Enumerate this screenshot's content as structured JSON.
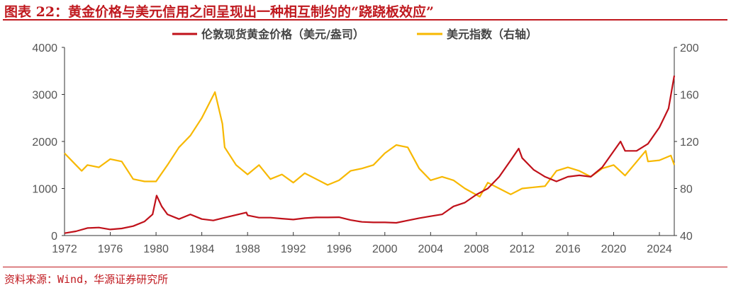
{
  "title": "图表 22：黄金价格与美元信用之间呈现出一种相互制约的“跷跷板效应”",
  "source": "资料来源：Wind，华源证券研究所",
  "colors": {
    "gold": "#c0111a",
    "dxy": "#f7b800",
    "accent": "#c0191f"
  },
  "chart_data": {
    "type": "line",
    "xlabel": "",
    "ylabel": "",
    "x_ticks": [
      "1972",
      "1976",
      "1980",
      "1984",
      "1988",
      "1992",
      "1996",
      "2000",
      "2004",
      "2008",
      "2012",
      "2016",
      "2020",
      "2024"
    ],
    "xlim": [
      1972,
      2025.3
    ],
    "y_left": {
      "lim": [
        0,
        4000
      ],
      "ticks": [
        "0",
        "1000",
        "2000",
        "3000",
        "4000"
      ]
    },
    "y_right": {
      "lim": [
        40,
        200
      ],
      "ticks": [
        "40",
        "80",
        "120",
        "160",
        "200"
      ]
    },
    "legend_position": "top",
    "series": [
      {
        "name": "伦敦现货黄金价格（美元/盎司）",
        "axis": "left",
        "x": [
          1972,
          1973,
          1974,
          1975,
          1976,
          1977,
          1978,
          1979,
          1979.7,
          1980.05,
          1980.5,
          1981,
          1982,
          1983,
          1984,
          1985,
          1986,
          1987.9,
          1988,
          1989,
          1990,
          1991,
          1992,
          1993,
          1994,
          1995,
          1996,
          1997,
          1998,
          1999,
          2000,
          2001,
          2002,
          2003,
          2004,
          2005,
          2006,
          2007,
          2008,
          2009,
          2010,
          2011,
          2011.7,
          2012,
          2013,
          2014,
          2015,
          2016,
          2017,
          2018,
          2019,
          2020.6,
          2021,
          2022,
          2023,
          2024,
          2024.8,
          2025.3
        ],
        "y": [
          50,
          90,
          160,
          170,
          130,
          150,
          200,
          300,
          450,
          850,
          620,
          450,
          350,
          450,
          350,
          320,
          380,
          490,
          430,
          380,
          380,
          360,
          340,
          370,
          385,
          385,
          390,
          330,
          290,
          280,
          280,
          270,
          320,
          370,
          410,
          450,
          620,
          700,
          870,
          1000,
          1250,
          1600,
          1850,
          1650,
          1400,
          1250,
          1150,
          1250,
          1280,
          1250,
          1450,
          2000,
          1800,
          1800,
          1950,
          2300,
          2700,
          3400
        ]
      },
      {
        "name": "美元指数（右轴）",
        "axis": "right",
        "x": [
          1972,
          1973,
          1973.5,
          1974,
          1975,
          1976,
          1977,
          1978,
          1979,
          1980,
          1981,
          1982,
          1983,
          1984,
          1985.15,
          1985.8,
          1986,
          1987,
          1988,
          1989,
          1990,
          1991,
          1992,
          1993,
          1994,
          1995,
          1996,
          1997,
          1998,
          1999,
          2000,
          2001,
          2002,
          2003,
          2004,
          2005,
          2006,
          2007,
          2008.3,
          2009,
          2010,
          2011,
          2012,
          2013,
          2014,
          2015,
          2016,
          2017,
          2018,
          2019,
          2020,
          2021,
          2022.8,
          2023,
          2024,
          2025,
          2025.3
        ],
        "y": [
          110,
          100,
          95,
          100,
          98,
          105,
          103,
          88,
          86,
          86,
          100,
          115,
          125,
          140,
          162,
          135,
          115,
          100,
          92,
          100,
          88,
          92,
          85,
          93,
          88,
          83,
          87,
          95,
          97,
          100,
          110,
          117,
          115,
          97,
          87,
          90,
          87,
          80,
          73,
          85,
          80,
          75,
          80,
          81,
          82,
          95,
          98,
          95,
          90,
          97,
          100,
          91,
          112,
          103,
          104,
          108,
          100
        ]
      }
    ]
  }
}
